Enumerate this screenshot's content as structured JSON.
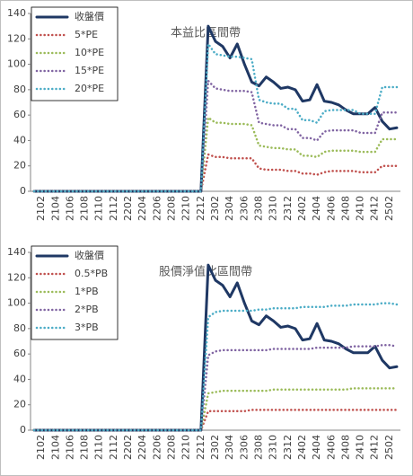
{
  "chart_data": [
    {
      "type": "line",
      "title": "本益比區間帶",
      "legend": "top-left",
      "grid": false,
      "categories": [
        null,
        "2102",
        null,
        "2104",
        null,
        "2106",
        null,
        "2108",
        null,
        "2110",
        null,
        "2112",
        null,
        "2202",
        null,
        "2204",
        null,
        "2206",
        null,
        "2208",
        null,
        "2210",
        null,
        "2212",
        null,
        "2302",
        null,
        "2304",
        null,
        "2306",
        null,
        "2308",
        null,
        "2310",
        null,
        "2312",
        null,
        "2402",
        null,
        "2404",
        null,
        "2406",
        null,
        "2408",
        null,
        "2410",
        null,
        "2412",
        null,
        "2502",
        null
      ],
      "ylim": [
        0,
        140
      ],
      "yticks": [
        0,
        20,
        40,
        60,
        80,
        100,
        120,
        140
      ],
      "series": [
        {
          "name": "收盤價",
          "color": "#1f3864",
          "values": [
            0,
            0,
            0,
            0,
            0,
            0,
            0,
            0,
            0,
            0,
            0,
            0,
            0,
            0,
            0,
            0,
            0,
            0,
            0,
            0,
            0,
            0,
            0,
            0,
            130,
            118,
            114,
            105,
            116,
            100,
            86,
            83,
            90,
            86,
            81,
            82,
            80,
            71,
            72,
            84,
            71,
            70,
            68,
            64,
            61,
            61,
            61,
            66,
            55,
            49,
            50
          ]
        },
        {
          "name": "5*PE",
          "color": "#c0504d",
          "values": [
            0,
            0,
            0,
            0,
            0,
            0,
            0,
            0,
            0,
            0,
            0,
            0,
            0,
            0,
            0,
            0,
            0,
            0,
            0,
            0,
            0,
            0,
            0,
            0,
            29,
            27,
            27,
            26,
            26,
            26,
            26,
            18,
            17,
            17,
            17,
            16,
            16,
            14,
            14,
            13,
            15,
            16,
            16,
            16,
            16,
            15,
            15,
            15,
            20,
            20,
            20
          ]
        },
        {
          "name": "10*PE",
          "color": "#9bbb59",
          "values": [
            0,
            0,
            0,
            0,
            0,
            0,
            0,
            0,
            0,
            0,
            0,
            0,
            0,
            0,
            0,
            0,
            0,
            0,
            0,
            0,
            0,
            0,
            0,
            0,
            58,
            54,
            54,
            53,
            53,
            53,
            52,
            36,
            35,
            34,
            34,
            33,
            33,
            28,
            28,
            27,
            31,
            32,
            32,
            32,
            32,
            31,
            31,
            31,
            41,
            41,
            41
          ]
        },
        {
          "name": "15*PE",
          "color": "#8064a2",
          "values": [
            0,
            0,
            0,
            0,
            0,
            0,
            0,
            0,
            0,
            0,
            0,
            0,
            0,
            0,
            0,
            0,
            0,
            0,
            0,
            0,
            0,
            0,
            0,
            0,
            87,
            81,
            80,
            79,
            79,
            79,
            78,
            54,
            53,
            52,
            52,
            49,
            49,
            42,
            42,
            40,
            47,
            48,
            48,
            48,
            48,
            46,
            46,
            46,
            62,
            62,
            62
          ]
        },
        {
          "name": "20*PE",
          "color": "#4bacc6",
          "values": [
            0,
            0,
            0,
            0,
            0,
            0,
            0,
            0,
            0,
            0,
            0,
            0,
            0,
            0,
            0,
            0,
            0,
            0,
            0,
            0,
            0,
            0,
            0,
            0,
            116,
            108,
            107,
            106,
            106,
            105,
            104,
            72,
            70,
            69,
            69,
            65,
            65,
            56,
            56,
            54,
            63,
            64,
            64,
            64,
            64,
            61,
            61,
            61,
            82,
            82,
            82
          ]
        }
      ]
    },
    {
      "type": "line",
      "title": "股價淨值比區間帶",
      "legend": "top-left",
      "grid": false,
      "categories": [
        null,
        "2102",
        null,
        "2104",
        null,
        "2106",
        null,
        "2108",
        null,
        "2110",
        null,
        "2112",
        null,
        "2202",
        null,
        "2204",
        null,
        "2206",
        null,
        "2208",
        null,
        "2210",
        null,
        "2212",
        null,
        "2302",
        null,
        "2304",
        null,
        "2306",
        null,
        "2308",
        null,
        "2310",
        null,
        "2312",
        null,
        "2402",
        null,
        "2404",
        null,
        "2406",
        null,
        "2408",
        null,
        "2410",
        null,
        "2412",
        null,
        "2502",
        null
      ],
      "ylim": [
        0,
        140
      ],
      "yticks": [
        0,
        20,
        40,
        60,
        80,
        100,
        120,
        140
      ],
      "series": [
        {
          "name": "收盤價",
          "color": "#1f3864",
          "values": [
            0,
            0,
            0,
            0,
            0,
            0,
            0,
            0,
            0,
            0,
            0,
            0,
            0,
            0,
            0,
            0,
            0,
            0,
            0,
            0,
            0,
            0,
            0,
            0,
            130,
            118,
            114,
            105,
            116,
            100,
            86,
            83,
            90,
            86,
            81,
            82,
            80,
            71,
            72,
            84,
            71,
            70,
            68,
            64,
            61,
            61,
            61,
            66,
            55,
            49,
            50
          ]
        },
        {
          "name": "0.5*PB",
          "color": "#c0504d",
          "values": [
            0,
            0,
            0,
            0,
            0,
            0,
            0,
            0,
            0,
            0,
            0,
            0,
            0,
            0,
            0,
            0,
            0,
            0,
            0,
            0,
            0,
            0,
            0,
            0,
            15,
            15,
            15,
            15,
            15,
            15,
            16,
            16,
            16,
            16,
            16,
            16,
            16,
            16,
            16,
            16,
            16,
            16,
            16,
            16,
            16,
            16,
            16,
            16,
            16,
            16,
            16
          ]
        },
        {
          "name": "1*PB",
          "color": "#9bbb59",
          "values": [
            0,
            0,
            0,
            0,
            0,
            0,
            0,
            0,
            0,
            0,
            0,
            0,
            0,
            0,
            0,
            0,
            0,
            0,
            0,
            0,
            0,
            0,
            0,
            0,
            29,
            30,
            31,
            31,
            31,
            31,
            31,
            31,
            31,
            32,
            32,
            32,
            32,
            32,
            32,
            32,
            32,
            32,
            32,
            32,
            33,
            33,
            33,
            33,
            33,
            33,
            33
          ]
        },
        {
          "name": "2*PB",
          "color": "#8064a2",
          "values": [
            0,
            0,
            0,
            0,
            0,
            0,
            0,
            0,
            0,
            0,
            0,
            0,
            0,
            0,
            0,
            0,
            0,
            0,
            0,
            0,
            0,
            0,
            0,
            0,
            59,
            62,
            63,
            63,
            63,
            63,
            63,
            63,
            63,
            64,
            64,
            64,
            64,
            64,
            64,
            65,
            65,
            65,
            65,
            65,
            66,
            66,
            66,
            66,
            67,
            67,
            66
          ]
        },
        {
          "name": "3*PB",
          "color": "#4bacc6",
          "values": [
            0,
            0,
            0,
            0,
            0,
            0,
            0,
            0,
            0,
            0,
            0,
            0,
            0,
            0,
            0,
            0,
            0,
            0,
            0,
            0,
            0,
            0,
            0,
            0,
            89,
            93,
            94,
            94,
            94,
            94,
            94,
            95,
            95,
            96,
            96,
            96,
            96,
            97,
            97,
            97,
            97,
            98,
            98,
            98,
            99,
            99,
            99,
            99,
            100,
            100,
            99
          ]
        }
      ]
    }
  ]
}
